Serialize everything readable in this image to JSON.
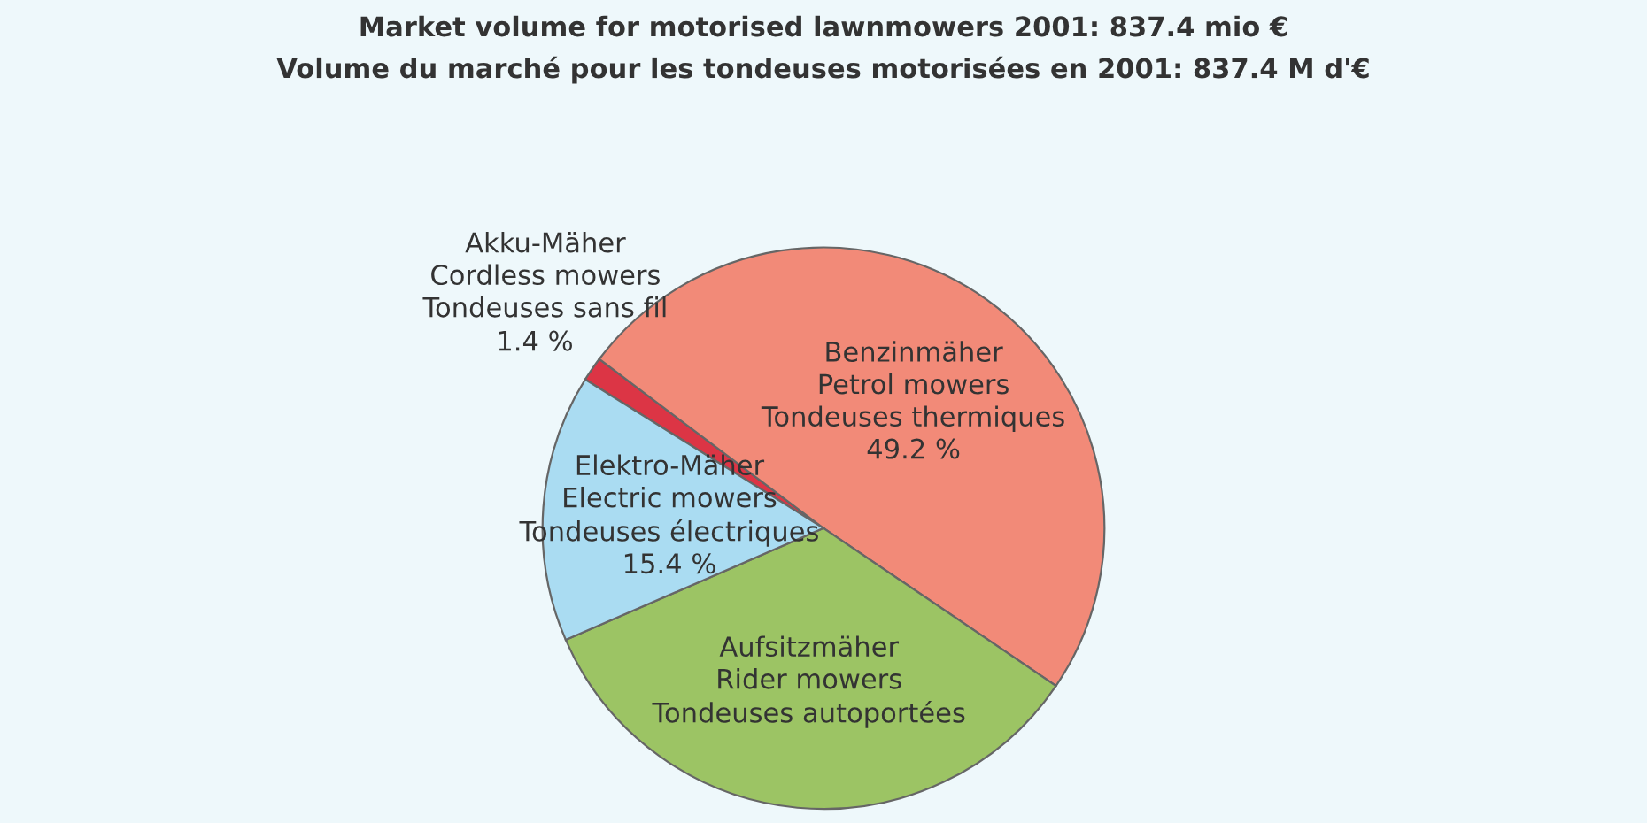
{
  "chart_data": {
    "type": "pie",
    "title": "Market volume for motorised lawnmowers 2001: 837.4 mio €",
    "subtitle": "Volume du marché pour les tondeuses motorisées en 2001: 837.4 M d'€",
    "categories": [
      "Akku-Mäher\nCordless mowers\nTondeuses sans fil",
      "Benzinmäher\nPetrol mowers\nTondeuses thermiques",
      "Aufsitzmäher\nRider mowers\nTondeuses autoportées",
      "Elektro-Mäher\nElectric mowers\nTondeuses électriques"
    ],
    "values": [
      1.4,
      49.2,
      34.0,
      15.4
    ],
    "colors": [
      "#dc3545",
      "#f28a78",
      "#9cc464",
      "#aadcf2"
    ],
    "value_labels": [
      "1.4 %",
      "49.2 %",
      null,
      "15.4 %"
    ]
  }
}
